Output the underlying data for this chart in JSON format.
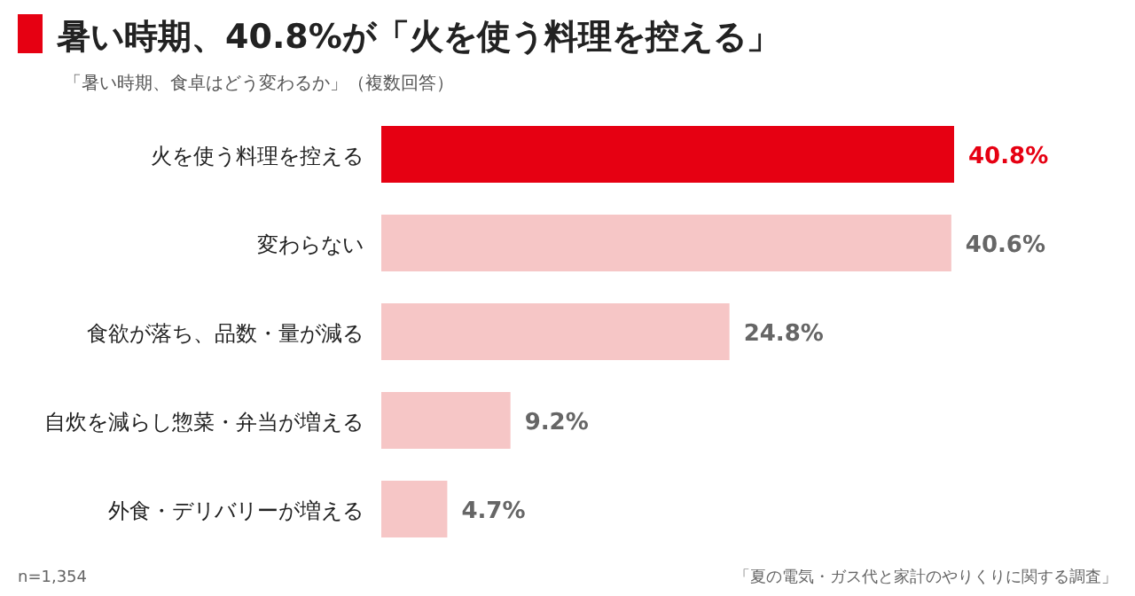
{
  "chart_data": {
    "type": "bar",
    "orientation": "horizontal",
    "title": "暑い時期、40.8%が「火を使う料理を控える」",
    "subtitle": "「暑い時期、食卓はどう変わるか」（複数回答）",
    "categories": [
      "火を使う料理を控える",
      "変わらない",
      "食欲が落ち、品数・量が減る",
      "自炊を減らし惣菜・弁当が増える",
      "外食・デリバリーが増える"
    ],
    "values": [
      40.8,
      40.6,
      24.8,
      9.2,
      4.7
    ],
    "colors": [
      "#e60012",
      "#f6c6c6",
      "#f6c6c6",
      "#f6c6c6",
      "#f6c6c6"
    ],
    "value_labels": [
      "40.8%",
      "40.6%",
      "24.8%",
      "9.2%",
      "4.7%"
    ],
    "xlim": [
      0,
      40.8
    ],
    "annotations": [
      "n=1,354",
      "「夏の電気・ガス代と家計のやりくりに関する調査」"
    ]
  }
}
